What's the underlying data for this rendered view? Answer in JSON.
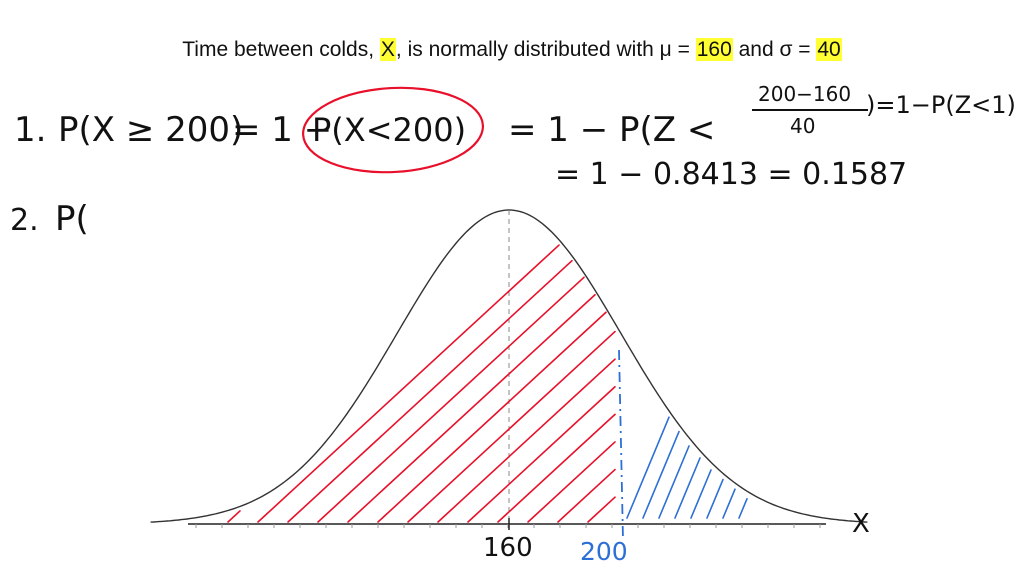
{
  "header": {
    "title_pre": "Time between colds, ",
    "title_var": "X",
    "title_mid": ", is normally distributed with μ = ",
    "mu": "160",
    "title_and": " and σ = ",
    "sigma": "40"
  },
  "work": {
    "item1_number": "1.",
    "item1_lhs": "P(X ≥ 200)",
    "item1_eq1": "= 1 −",
    "item1_circled": "P(X<200)",
    "item1_eq2": "= 1 − P(Z <",
    "frac_numerator": "200−160",
    "frac_denominator": "40",
    "item1_tail": ")=1−P(Z<1)",
    "item1_line2": "= 1 − 0.8413 = 0.1587",
    "item2_number": "2.",
    "item2_start": "P("
  },
  "graph": {
    "mean_label": "160",
    "cutoff_label": "200",
    "axis_label": "X",
    "mean": 160,
    "sd": 40,
    "cutoff": 200,
    "colors": {
      "curve": "#333333",
      "red_shading": "#e8102a",
      "blue_shading": "#2c6fd6",
      "highlight": "#ffff33"
    }
  }
}
